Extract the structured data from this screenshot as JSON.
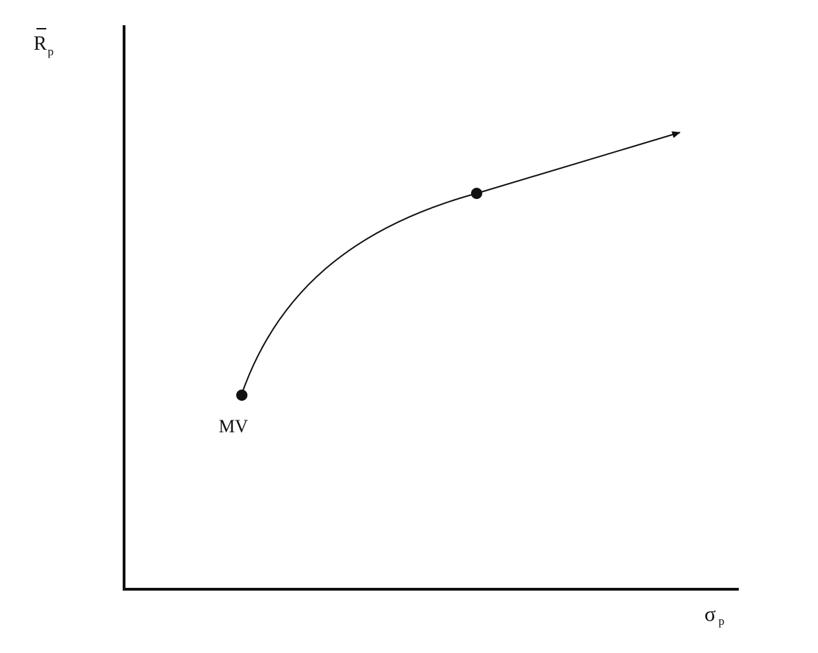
{
  "axes": {
    "y_label": {
      "main": "R",
      "sub": "p",
      "overbar": true
    },
    "x_label": {
      "main": "σ",
      "sub": "p"
    }
  },
  "points": [
    {
      "id": "minimum-variance",
      "label": "MV"
    },
    {
      "id": "frontier-point",
      "label": ""
    }
  ],
  "colors": {
    "ink": "#111111",
    "background": "#ffffff"
  }
}
